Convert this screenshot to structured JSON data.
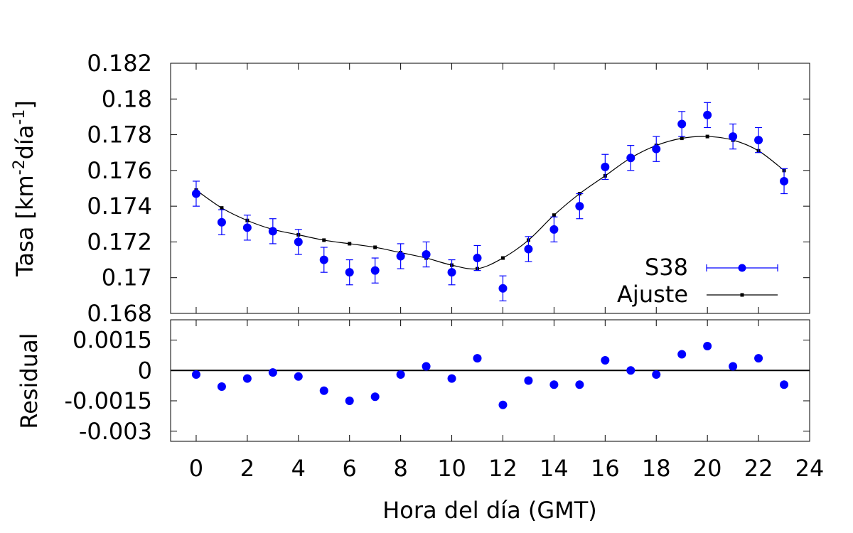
{
  "chart_data": [
    {
      "type": "scatter",
      "panel": "main",
      "ylabel_main": "Tasa [km",
      "ylabel_exp1": "-2",
      "ylabel_mid": "día",
      "ylabel_exp2": "-1",
      "ylabel_end": "]",
      "ylim": [
        0.168,
        0.182
      ],
      "yticks": [
        "0.182",
        "0.18",
        "0.178",
        "0.176",
        "0.174",
        "0.172",
        "0.17",
        "0.168"
      ],
      "ytick_values": [
        0.182,
        0.18,
        0.178,
        0.176,
        0.174,
        0.172,
        0.17,
        0.168
      ],
      "xlim": [
        -1,
        24
      ],
      "legend_position": "bottom-right",
      "colors": {
        "data": "#0000ff",
        "fit": "#000000"
      },
      "series": [
        {
          "name": "S38",
          "kind": "points-with-errorbars",
          "x": [
            0,
            1,
            2,
            3,
            4,
            5,
            6,
            7,
            8,
            9,
            10,
            11,
            12,
            13,
            14,
            15,
            16,
            17,
            18,
            19,
            20,
            21,
            22,
            23
          ],
          "y": [
            0.1747,
            0.1731,
            0.1728,
            0.1726,
            0.172,
            0.171,
            0.1703,
            0.1704,
            0.1712,
            0.1713,
            0.1703,
            0.1711,
            0.1694,
            0.1716,
            0.1727,
            0.174,
            0.1762,
            0.1767,
            0.1772,
            0.1786,
            0.1791,
            0.1779,
            0.1777,
            0.1754
          ],
          "err": [
            0.0007,
            0.0007,
            0.0007,
            0.0007,
            0.0007,
            0.0007,
            0.0007,
            0.0007,
            0.0007,
            0.0007,
            0.0007,
            0.0007,
            0.0007,
            0.0007,
            0.0007,
            0.0007,
            0.0007,
            0.0007,
            0.0007,
            0.0007,
            0.0007,
            0.0007,
            0.0007,
            0.0007
          ]
        },
        {
          "name": "Ajuste",
          "kind": "line-with-small-markers",
          "x": [
            0,
            1,
            2,
            3,
            4,
            5,
            6,
            7,
            8,
            9,
            10,
            11,
            12,
            13,
            14,
            15,
            16,
            17,
            18,
            19,
            20,
            21,
            22,
            23
          ],
          "y": [
            0.1749,
            0.1739,
            0.1732,
            0.1727,
            0.1724,
            0.1721,
            0.1719,
            0.1717,
            0.1714,
            0.1711,
            0.1707,
            0.1705,
            0.1711,
            0.1721,
            0.1735,
            0.1747,
            0.1757,
            0.1767,
            0.1774,
            0.1778,
            0.1779,
            0.1777,
            0.1771,
            0.176
          ]
        }
      ]
    },
    {
      "type": "scatter",
      "panel": "residual",
      "ylabel": "Residual",
      "xlabel": "Hora del día (GMT)",
      "ylim": [
        -0.0035,
        0.0025
      ],
      "yticks": [
        "0.0015",
        "0",
        "-0.0015",
        "-0.003"
      ],
      "ytick_values": [
        0.0015,
        0,
        -0.0015,
        -0.003
      ],
      "xlim": [
        -1,
        24
      ],
      "xticks": [
        "0",
        "2",
        "4",
        "6",
        "8",
        "10",
        "12",
        "14",
        "16",
        "18",
        "20",
        "22",
        "24"
      ],
      "xtick_values": [
        0,
        2,
        4,
        6,
        8,
        10,
        12,
        14,
        16,
        18,
        20,
        22,
        24
      ],
      "zero_line": true,
      "series": [
        {
          "x": [
            0,
            1,
            2,
            3,
            4,
            5,
            6,
            7,
            8,
            9,
            10,
            11,
            12,
            13,
            14,
            15,
            16,
            17,
            18,
            19,
            20,
            21,
            22,
            23
          ],
          "y": [
            -0.0002,
            -0.0008,
            -0.0004,
            -0.0001,
            -0.0003,
            -0.001,
            -0.0015,
            -0.0013,
            -0.0002,
            0.0002,
            -0.0004,
            0.0006,
            -0.0017,
            -0.0005,
            -0.0007,
            -0.0007,
            0.0005,
            0.0,
            -0.0002,
            0.0008,
            0.0012,
            0.0002,
            0.0006,
            -0.0007
          ]
        }
      ]
    }
  ]
}
